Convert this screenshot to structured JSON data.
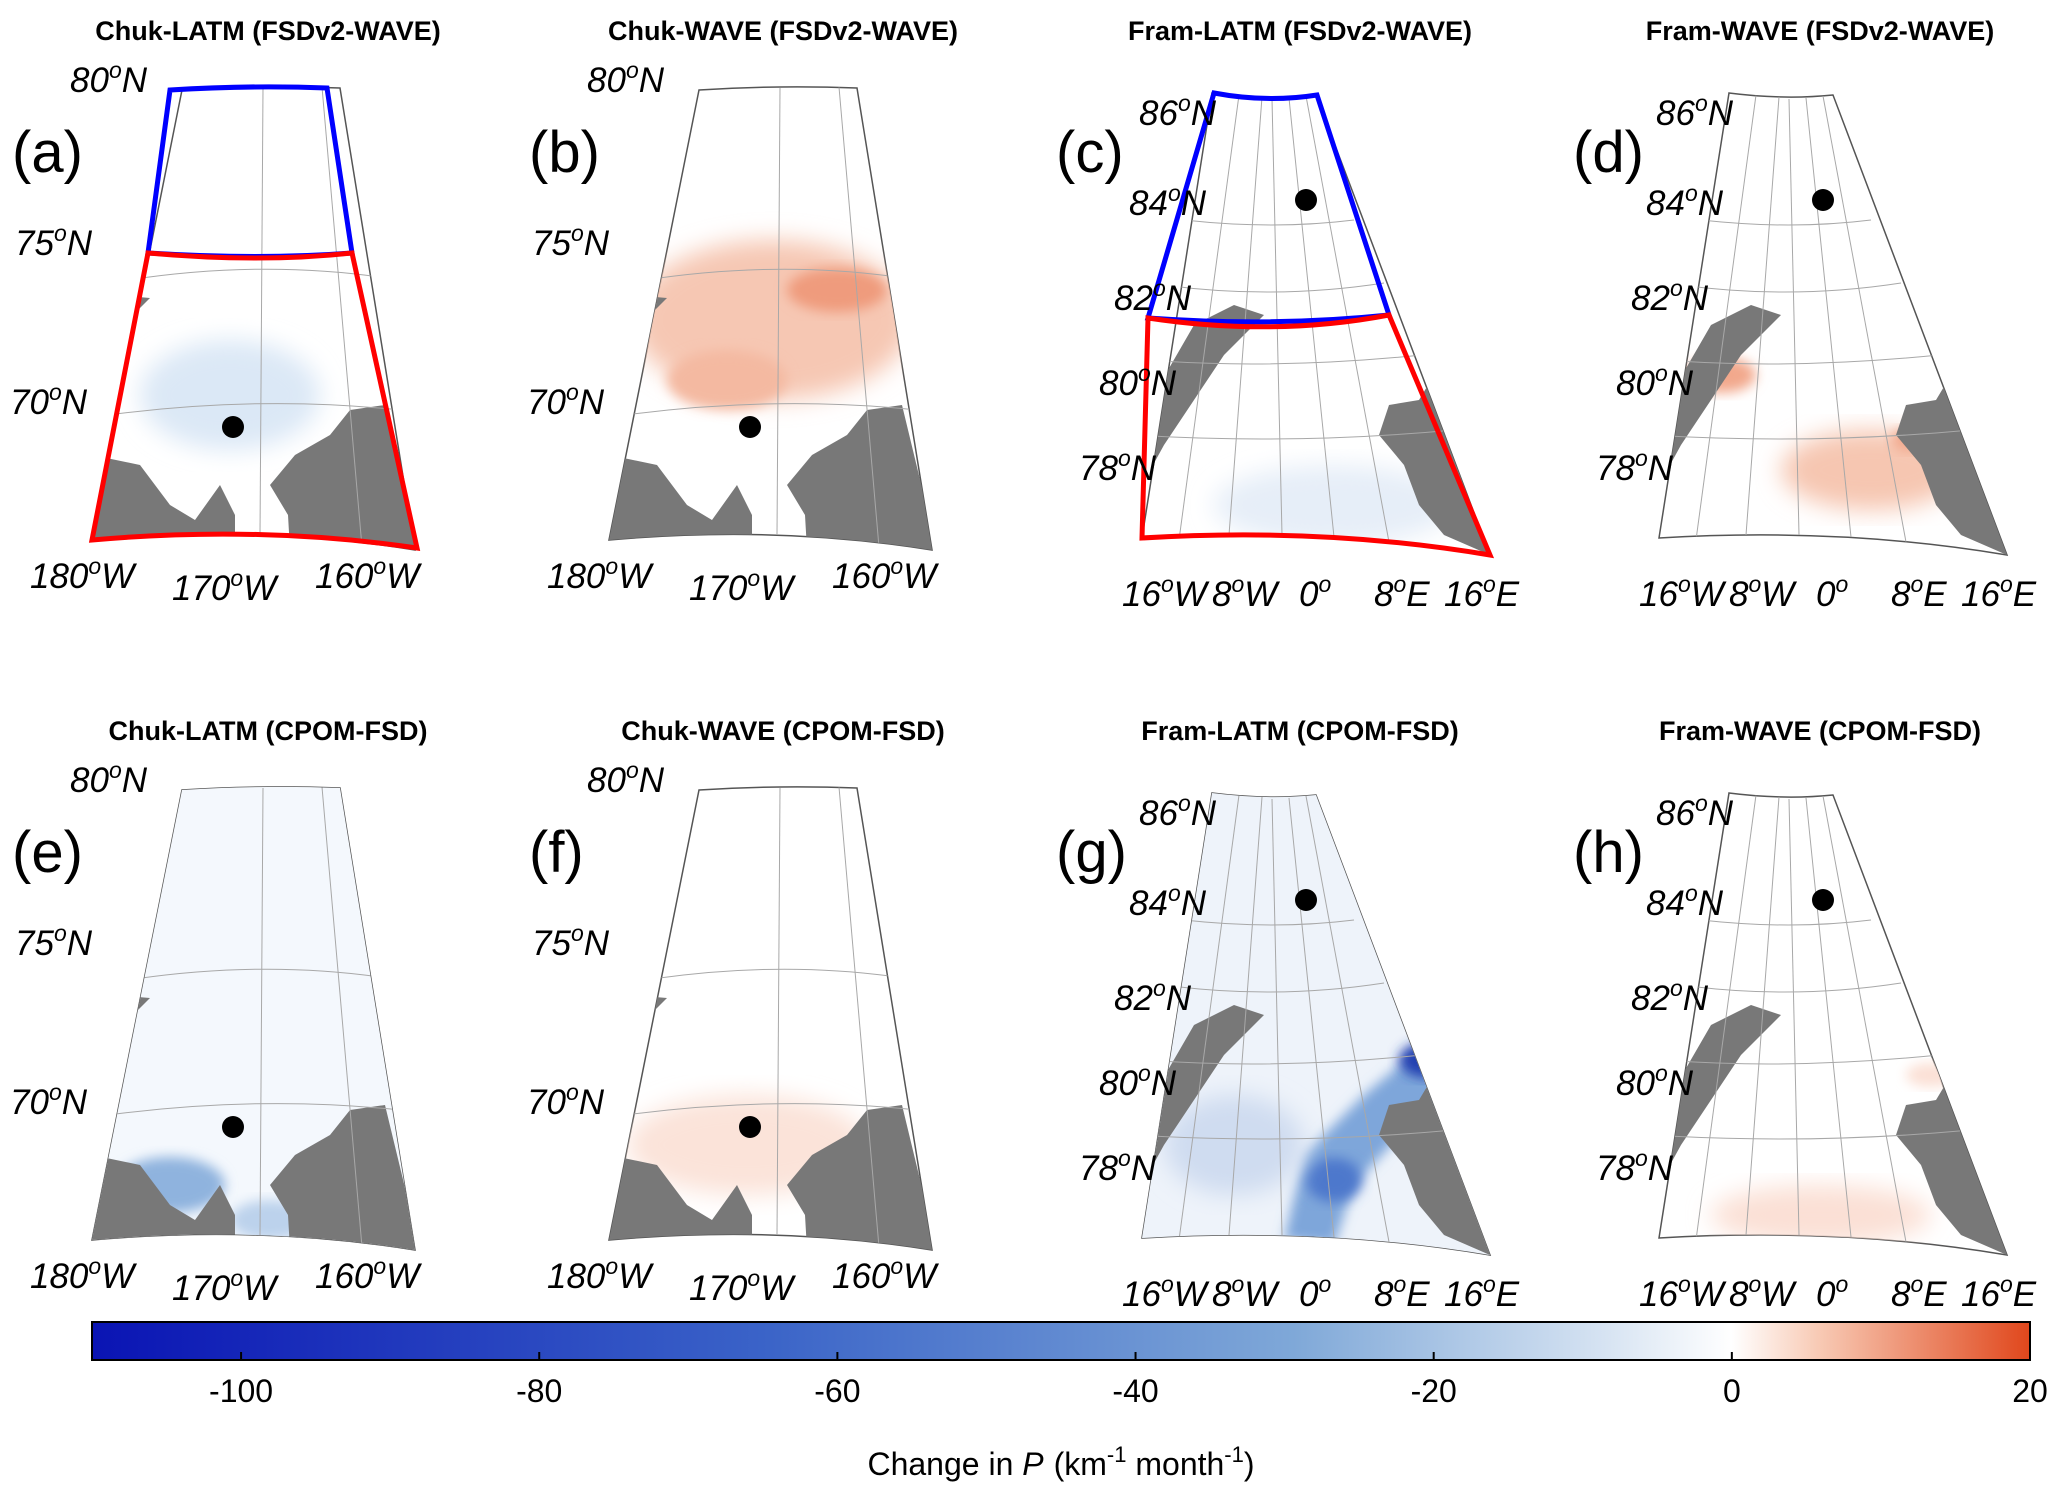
{
  "figure": {
    "panels": [
      {
        "id": "a",
        "label": "(a)",
        "title": "Chuk-LATM (FSDv2-WAVE)",
        "region": "chukchi",
        "dataset": "FSDv2-WAVE",
        "experiment": "LATM"
      },
      {
        "id": "b",
        "label": "(b)",
        "title": "Chuk-WAVE (FSDv2-WAVE)",
        "region": "chukchi",
        "dataset": "FSDv2-WAVE",
        "experiment": "WAVE"
      },
      {
        "id": "c",
        "label": "(c)",
        "title": "Fram-LATM (FSDv2-WAVE)",
        "region": "fram",
        "dataset": "FSDv2-WAVE",
        "experiment": "LATM"
      },
      {
        "id": "d",
        "label": "(d)",
        "title": "Fram-WAVE (FSDv2-WAVE)",
        "region": "fram",
        "dataset": "FSDv2-WAVE",
        "experiment": "WAVE"
      },
      {
        "id": "e",
        "label": "(e)",
        "title": "Chuk-LATM (CPOM-FSD)",
        "region": "chukchi",
        "dataset": "CPOM-FSD",
        "experiment": "LATM"
      },
      {
        "id": "f",
        "label": "(f)",
        "title": "Chuk-WAVE (CPOM-FSD)",
        "region": "chukchi",
        "dataset": "CPOM-FSD",
        "experiment": "WAVE"
      },
      {
        "id": "g",
        "label": "(g)",
        "title": "Fram-LATM (CPOM-FSD)",
        "region": "fram",
        "dataset": "CPOM-FSD",
        "experiment": "LATM"
      },
      {
        "id": "h",
        "label": "(h)",
        "title": "Fram-WAVE (CPOM-FSD)",
        "region": "fram",
        "dataset": "CPOM-FSD",
        "experiment": "WAVE"
      }
    ],
    "chukchi_latitudes": [
      "80",
      "75",
      "70"
    ],
    "chukchi_longitudes": [
      "180",
      "170",
      "160"
    ],
    "chukchi_lon_hemi": "W",
    "fram_latitudes": [
      "86",
      "84",
      "82",
      "80",
      "78"
    ],
    "fram_longitudes": [
      {
        "value": "16",
        "hemi": "W"
      },
      {
        "value": "8",
        "hemi": "W"
      },
      {
        "value": "0",
        "hemi": ""
      },
      {
        "value": "8",
        "hemi": "E"
      },
      {
        "value": "16",
        "hemi": "E"
      }
    ],
    "lat_hemi": "N",
    "degree_symbol": "o"
  },
  "colorbar": {
    "min": -110,
    "max": 20,
    "ticks": [
      -100,
      -80,
      -60,
      -40,
      -20,
      0,
      20
    ],
    "tick_labels": [
      "-100",
      "-80",
      "-60",
      "-40",
      "-20",
      "0",
      "20"
    ],
    "label_prefix": "Change in ",
    "label_var": "P",
    "label_units": "(km",
    "label_sup": "-1",
    "label_units2": " month",
    "label_sup2": "-1",
    "label_close": ")",
    "colors": {
      "min": "#0a14b4",
      "mid_neg": "#5a8ccd",
      "zero": "#ffffff",
      "max": "#e0471c"
    }
  },
  "styles": {
    "land": "#787878",
    "north_box": "#0000ff",
    "south_box": "#ff0000",
    "grid": "#a8a8a8",
    "point": "#000000"
  }
}
